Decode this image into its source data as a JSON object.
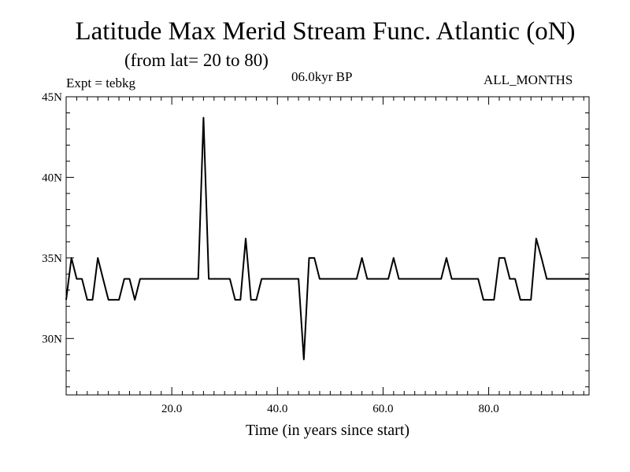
{
  "header": {
    "title": "Latitude Max Merid Stream Func. Atlantic (oN)",
    "subtitle": "(from lat= 20 to 80)",
    "experiment": "Expt = tebkg",
    "period": "06.0kyr BP",
    "months": "ALL_MONTHS"
  },
  "chart_data": {
    "type": "line",
    "title": "Latitude Max Merid Stream Func. Atlantic (oN)",
    "subtitle": "(from lat= 20 to 80)",
    "xlabel": "Time (in years since start)",
    "ylabel": "",
    "xlim": [
      0,
      99
    ],
    "ylim": [
      26.5,
      45
    ],
    "xticks": [
      20,
      40,
      60,
      80
    ],
    "xtick_labels": [
      "20.0",
      "40.0",
      "60.0",
      "80.0"
    ],
    "yticks": [
      30,
      35,
      40,
      45
    ],
    "ytick_labels": [
      "30N",
      "35N",
      "40N",
      "45N"
    ],
    "grid": false,
    "series": [
      {
        "name": "tebkg",
        "color": "#000000",
        "x": [
          0,
          1,
          2,
          3,
          4,
          5,
          6,
          7,
          8,
          9,
          10,
          11,
          12,
          13,
          14,
          15,
          16,
          17,
          18,
          19,
          20,
          21,
          22,
          23,
          24,
          25,
          26,
          27,
          28,
          29,
          30,
          31,
          32,
          33,
          34,
          35,
          36,
          37,
          38,
          39,
          40,
          41,
          42,
          43,
          44,
          45,
          46,
          47,
          48,
          49,
          50,
          51,
          52,
          53,
          54,
          55,
          56,
          57,
          58,
          59,
          60,
          61,
          62,
          63,
          64,
          65,
          66,
          67,
          68,
          69,
          70,
          71,
          72,
          73,
          74,
          75,
          76,
          77,
          78,
          79,
          80,
          81,
          82,
          83,
          84,
          85,
          86,
          87,
          88,
          89,
          90,
          91,
          92,
          93,
          94,
          95,
          96,
          97,
          98,
          99
        ],
        "values": [
          32.4,
          35.0,
          33.7,
          33.7,
          32.4,
          32.4,
          35.0,
          33.7,
          32.4,
          32.4,
          32.4,
          33.7,
          33.7,
          32.4,
          33.7,
          33.7,
          33.7,
          33.7,
          33.7,
          33.7,
          33.7,
          33.7,
          33.7,
          33.7,
          33.7,
          33.7,
          43.7,
          33.7,
          33.7,
          33.7,
          33.7,
          33.7,
          32.4,
          32.4,
          36.2,
          32.4,
          32.4,
          33.7,
          33.7,
          33.7,
          33.7,
          33.7,
          33.7,
          33.7,
          33.7,
          28.7,
          35.0,
          35.0,
          33.7,
          33.7,
          33.7,
          33.7,
          33.7,
          33.7,
          33.7,
          33.7,
          35.0,
          33.7,
          33.7,
          33.7,
          33.7,
          33.7,
          35.0,
          33.7,
          33.7,
          33.7,
          33.7,
          33.7,
          33.7,
          33.7,
          33.7,
          33.7,
          35.0,
          33.7,
          33.7,
          33.7,
          33.7,
          33.7,
          33.7,
          32.4,
          32.4,
          32.4,
          35.0,
          35.0,
          33.7,
          33.7,
          32.4,
          32.4,
          32.4,
          36.2,
          35.0,
          33.7,
          33.7,
          33.7,
          33.7,
          33.7,
          33.7,
          33.7,
          33.7,
          33.7
        ]
      }
    ]
  }
}
